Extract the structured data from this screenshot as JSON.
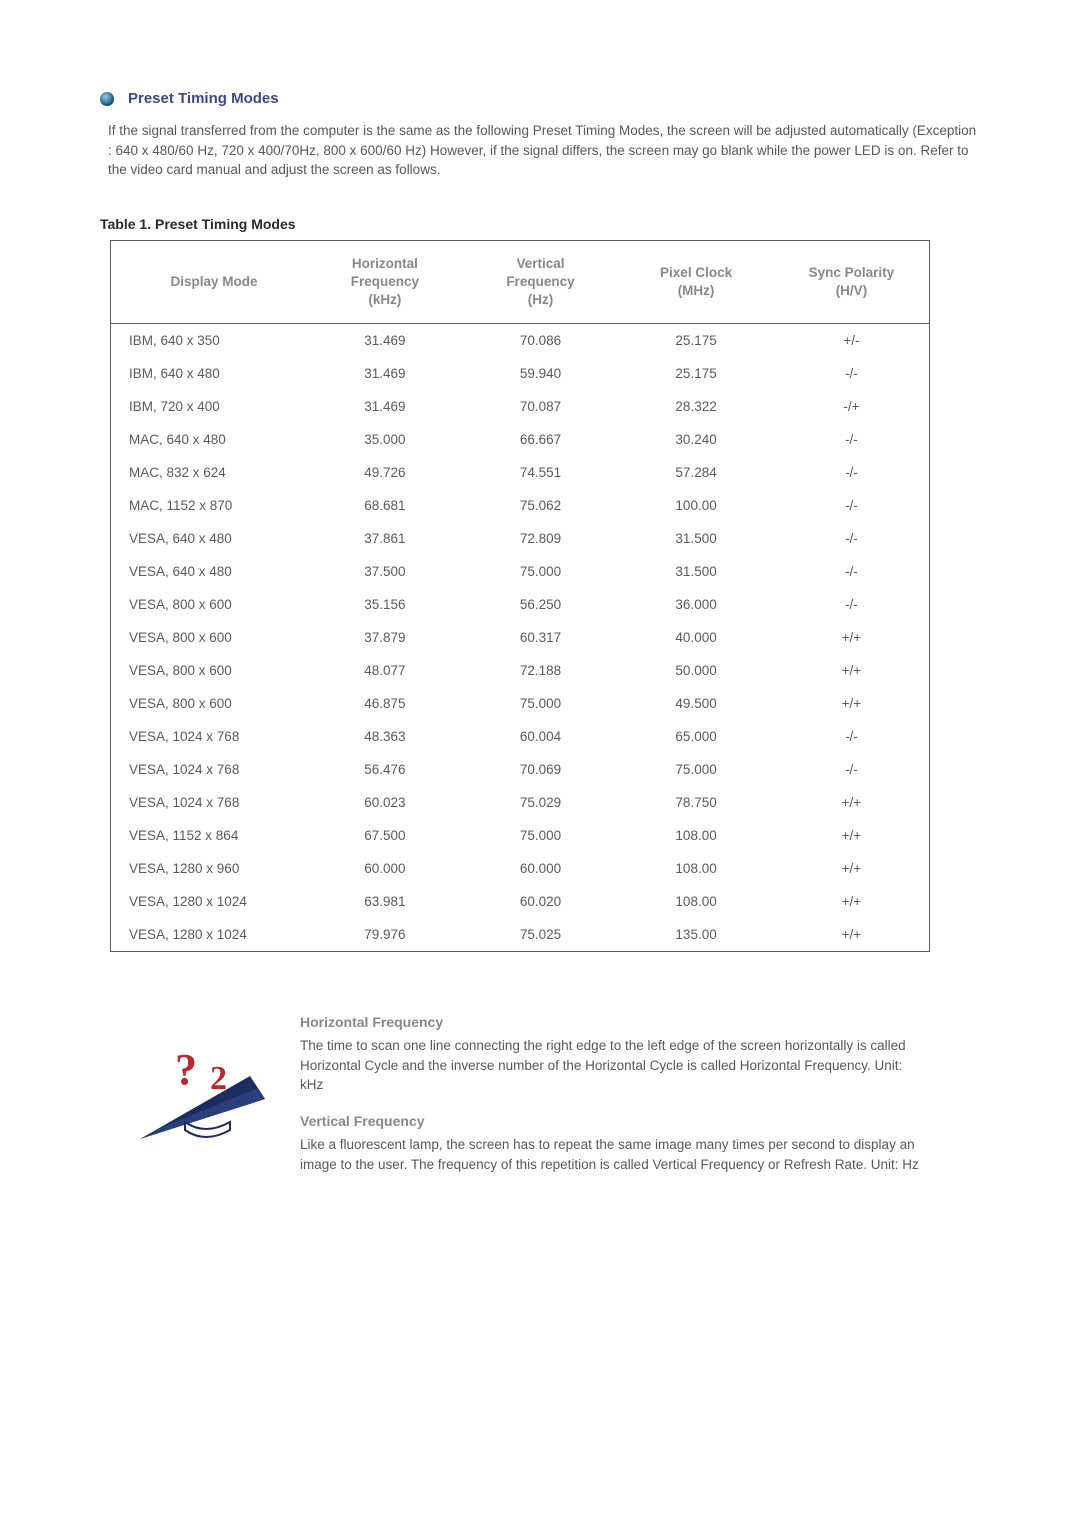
{
  "heading": "Preset Timing Modes",
  "intro": "If the signal transferred from the computer is the same as the following Preset Timing Modes, the screen will be adjusted automatically (Exception : 640 x 480/60 Hz, 720 x 400/70Hz, 800 x 600/60 Hz) However, if the signal differs, the screen may go blank while the power LED is on. Refer to the video card manual and adjust the screen as follows.",
  "table_title": "Table 1. Preset Timing Modes",
  "columns": {
    "mode": "Display Mode",
    "hfreq": "Horizontal\nFrequency\n(kHz)",
    "vfreq": "Vertical\nFrequency\n(Hz)",
    "pixel": "Pixel Clock\n(MHz)",
    "sync": "Sync Polarity\n(H/V)"
  },
  "rows": [
    {
      "mode": "IBM, 640 x 350",
      "h": "31.469",
      "v": "70.086",
      "p": "25.175",
      "s": "+/-"
    },
    {
      "mode": "IBM, 640 x 480",
      "h": "31.469",
      "v": "59.940",
      "p": "25.175",
      "s": "-/-"
    },
    {
      "mode": "IBM, 720 x 400",
      "h": "31.469",
      "v": "70.087",
      "p": "28.322",
      "s": "-/+"
    },
    {
      "mode": "MAC, 640 x 480",
      "h": "35.000",
      "v": "66.667",
      "p": "30.240",
      "s": "-/-"
    },
    {
      "mode": "MAC, 832 x 624",
      "h": "49.726",
      "v": "74.551",
      "p": "57.284",
      "s": "-/-"
    },
    {
      "mode": "MAC, 1152 x 870",
      "h": "68.681",
      "v": "75.062",
      "p": "100.00",
      "s": "-/-"
    },
    {
      "mode": "VESA, 640 x 480",
      "h": "37.861",
      "v": "72.809",
      "p": "31.500",
      "s": "-/-"
    },
    {
      "mode": "VESA, 640 x 480",
      "h": "37.500",
      "v": "75.000",
      "p": "31.500",
      "s": "-/-"
    },
    {
      "mode": "VESA, 800 x 600",
      "h": "35.156",
      "v": "56.250",
      "p": "36.000",
      "s": "-/-"
    },
    {
      "mode": "VESA, 800 x 600",
      "h": "37.879",
      "v": "60.317",
      "p": "40.000",
      "s": "+/+"
    },
    {
      "mode": "VESA, 800 x 600",
      "h": "48.077",
      "v": "72.188",
      "p": "50.000",
      "s": "+/+"
    },
    {
      "mode": "VESA, 800 x 600",
      "h": "46.875",
      "v": "75.000",
      "p": "49.500",
      "s": "+/+"
    },
    {
      "mode": "VESA, 1024 x 768",
      "h": "48.363",
      "v": "60.004",
      "p": "65.000",
      "s": "-/-"
    },
    {
      "mode": "VESA, 1024 x 768",
      "h": "56.476",
      "v": "70.069",
      "p": "75.000",
      "s": "-/-"
    },
    {
      "mode": "VESA, 1024 x 768",
      "h": "60.023",
      "v": "75.029",
      "p": "78.750",
      "s": "+/+"
    },
    {
      "mode": "VESA, 1152 x 864",
      "h": "67.500",
      "v": "75.000",
      "p": "108.00",
      "s": "+/+"
    },
    {
      "mode": "VESA, 1280 x 960",
      "h": "60.000",
      "v": "60.000",
      "p": "108.00",
      "s": "+/+"
    },
    {
      "mode": "VESA, 1280 x 1024",
      "h": "63.981",
      "v": "60.020",
      "p": "108.00",
      "s": "+/+"
    },
    {
      "mode": "VESA, 1280 x 1024",
      "h": "79.976",
      "v": "75.025",
      "p": "135.00",
      "s": "+/+"
    }
  ],
  "freq": {
    "h_title": "Horizontal Frequency",
    "h_text": "The time to scan one line connecting the right edge to the left edge of the screen horizontally is called Horizontal Cycle and the inverse number of the Horizontal Cycle is called Horizontal Frequency. Unit: kHz",
    "v_title": "Vertical Frequency",
    "v_text": "Like a fluorescent lamp, the screen has to repeat the same image many times per second to display an image to the user. The frequency of this repetition is called Vertical Frequency or Refresh Rate. Unit: Hz"
  },
  "colors": {
    "heading": "#3b4a8c",
    "body_text": "#585858",
    "header_text": "#888888",
    "border": "#5a5a5a",
    "accent_red": "#b8292f",
    "accent_navy": "#1d2c5f"
  }
}
